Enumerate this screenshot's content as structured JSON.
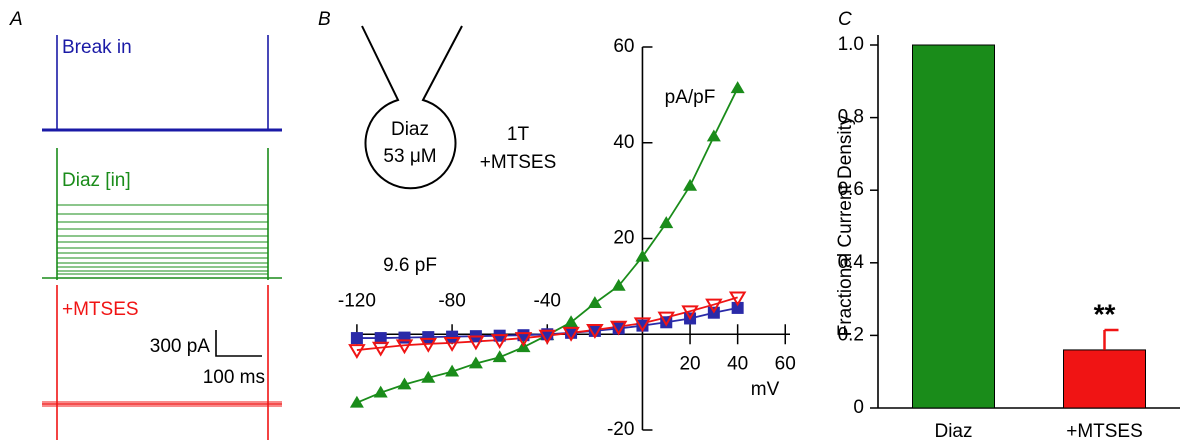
{
  "chart_data": [
    {
      "type": "traces",
      "panel_label": "A",
      "traces": [
        {
          "name": "Break in",
          "color": "#1a1aa6"
        },
        {
          "name": "Diaz [in]",
          "color": "#1a8c1a"
        },
        {
          "name": "+MTSES",
          "color": "#f01414"
        }
      ],
      "scale_bar_y": "300 pA",
      "scale_bar_x": "100 ms"
    },
    {
      "type": "line",
      "panel_label": "B",
      "y_label": "pA/pF",
      "x_label": "mV",
      "annotations": [
        "9.6 pF",
        "Diaz",
        "53 μM",
        "1T",
        "+MTSES"
      ],
      "x": [
        -120,
        -110,
        -100,
        -90,
        -80,
        -70,
        -60,
        -50,
        -40,
        -30,
        -20,
        -10,
        0,
        10,
        20,
        30,
        40
      ],
      "series": [
        {
          "name": "Diaz",
          "color": "#1a8c1a",
          "marker": "triangle-up",
          "values": [
            -14.3,
            -12.2,
            -10.5,
            -9.1,
            -7.8,
            -6.1,
            -4.8,
            -2.7,
            -0.2,
            2.5,
            6.5,
            10.1,
            16.2,
            23.2,
            31,
            41.3,
            51.4
          ]
        },
        {
          "name": "Break in",
          "color": "#2a2aa8",
          "marker": "square",
          "values": [
            -0.8,
            -0.8,
            -0.7,
            -0.6,
            -0.5,
            -0.4,
            -0.3,
            -0.2,
            0,
            0.3,
            0.7,
            1.2,
            1.8,
            2.5,
            3.3,
            4.5,
            5.5
          ]
        },
        {
          "name": "+MTSES",
          "color": "#f01414",
          "marker": "triangle-down",
          "values": [
            -3.3,
            -2.8,
            -2.3,
            -2,
            -1.8,
            -1.5,
            -1.2,
            -0.8,
            -0.3,
            0.3,
            0.9,
            1.6,
            2.3,
            3.5,
            4.8,
            6.2,
            7.7
          ]
        }
      ],
      "xlim": [
        -125,
        62
      ],
      "ylim": [
        -20,
        60
      ],
      "xticks": [
        -120,
        -80,
        -40,
        20,
        40,
        60
      ],
      "yticks": [
        -20,
        20,
        40,
        60
      ]
    },
    {
      "type": "bar",
      "panel_label": "C",
      "y_label": "Fractional Current Density",
      "categories": [
        "Diaz",
        "+MTSES"
      ],
      "values": [
        1,
        0.16
      ],
      "errors": [
        null,
        0.055
      ],
      "colors": [
        "#1a8c1a",
        "#f01414"
      ],
      "significance": [
        null,
        "**"
      ],
      "ylim": [
        0,
        1
      ],
      "yticks": [
        0,
        0.2,
        0.4,
        0.6,
        0.8,
        {
          "value": 1,
          "label": "1.0"
        }
      ]
    }
  ]
}
